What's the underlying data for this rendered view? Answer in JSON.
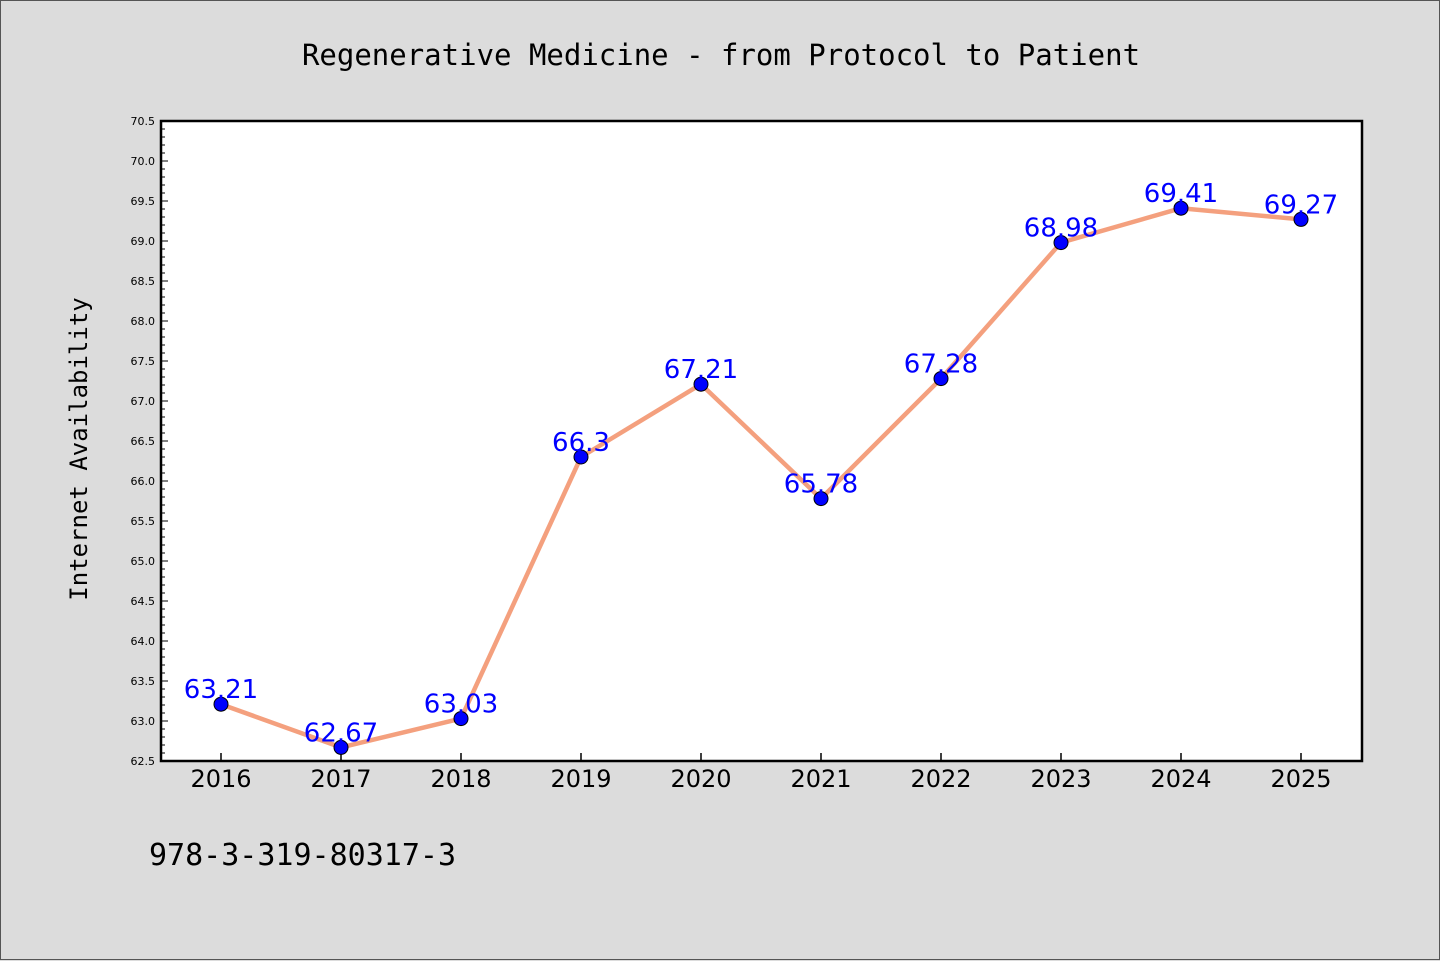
{
  "chart_data": {
    "type": "line",
    "title": "Regenerative Medicine - from Protocol to Patient",
    "ylabel": "Internet Availability",
    "xlabel": "",
    "categories": [
      "2016",
      "2017",
      "2018",
      "2019",
      "2020",
      "2021",
      "2022",
      "2023",
      "2024",
      "2025"
    ],
    "values": [
      63.21,
      62.67,
      63.03,
      66.3,
      67.21,
      65.78,
      67.28,
      68.98,
      69.41,
      69.27
    ],
    "data_labels": [
      "63.21",
      "62.67",
      "63.03",
      "66.3",
      "67.21",
      "65.78",
      "67.28",
      "68.98",
      "69.41",
      "69.27"
    ],
    "ylim": [
      62.5,
      70.5
    ],
    "yticks": [
      "62.5",
      "63.0",
      "63.5",
      "64.0",
      "64.5",
      "65.0",
      "65.5",
      "66.0",
      "66.5",
      "67.0",
      "67.5",
      "68.0",
      "68.5",
      "69.0",
      "69.5",
      "70.0",
      "70.5"
    ],
    "grid": false,
    "line_color": "#f4a07e",
    "marker_color": "#0000ff",
    "label_color": "#0000ff",
    "background_color": "#dcdcdc"
  },
  "footnote": "978-3-319-80317-3"
}
